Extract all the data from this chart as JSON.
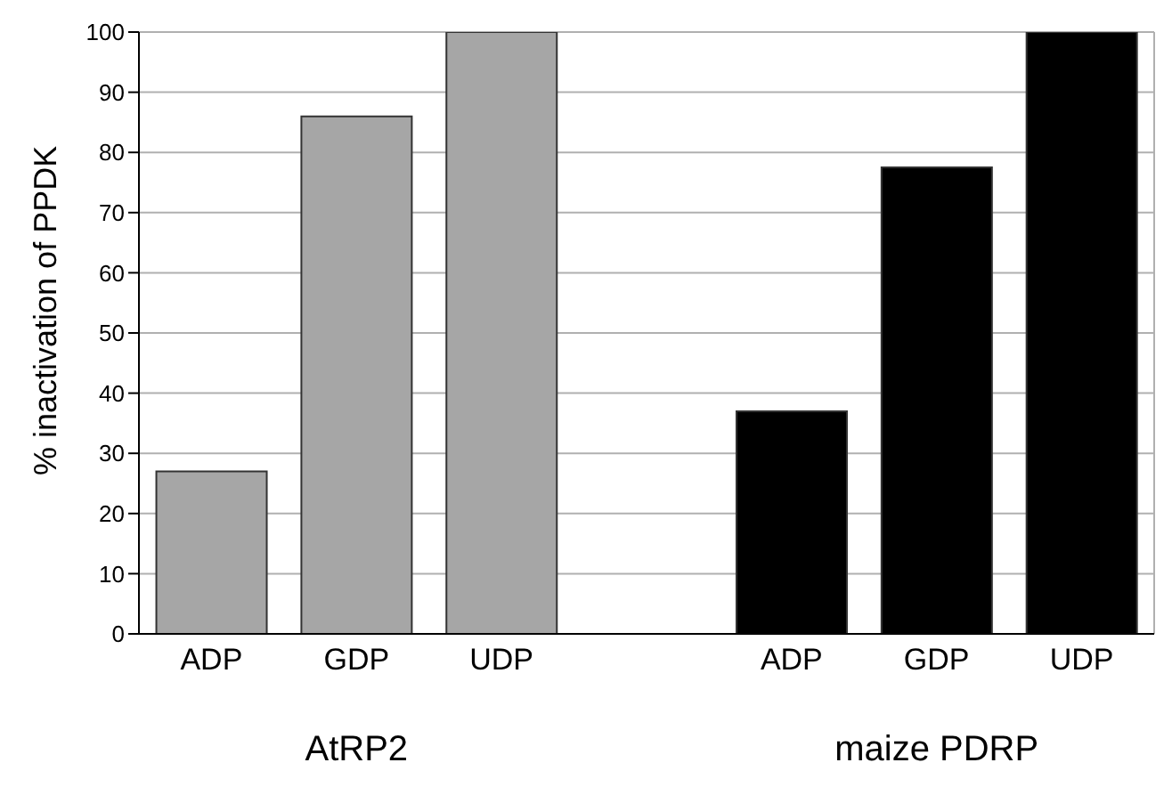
{
  "chart_data": {
    "type": "bar",
    "ylabel": "% inactivation of PPDK",
    "categories": [
      "ADP",
      "GDP",
      "UDP",
      null,
      "ADP",
      "GDP",
      "UDP"
    ],
    "values": [
      27,
      86,
      100,
      null,
      37,
      77.5,
      100
    ],
    "colors": [
      "#a6a6a6",
      "#a6a6a6",
      "#a6a6a6",
      "#ffffff",
      "#000000",
      "#000000",
      "#000000"
    ],
    "ylim": [
      0,
      100
    ],
    "yticks": [
      0,
      10,
      20,
      30,
      40,
      50,
      60,
      70,
      80,
      90,
      100
    ],
    "grid": "y",
    "annotations": [
      "AtRP2",
      "maize PDRP"
    ]
  }
}
